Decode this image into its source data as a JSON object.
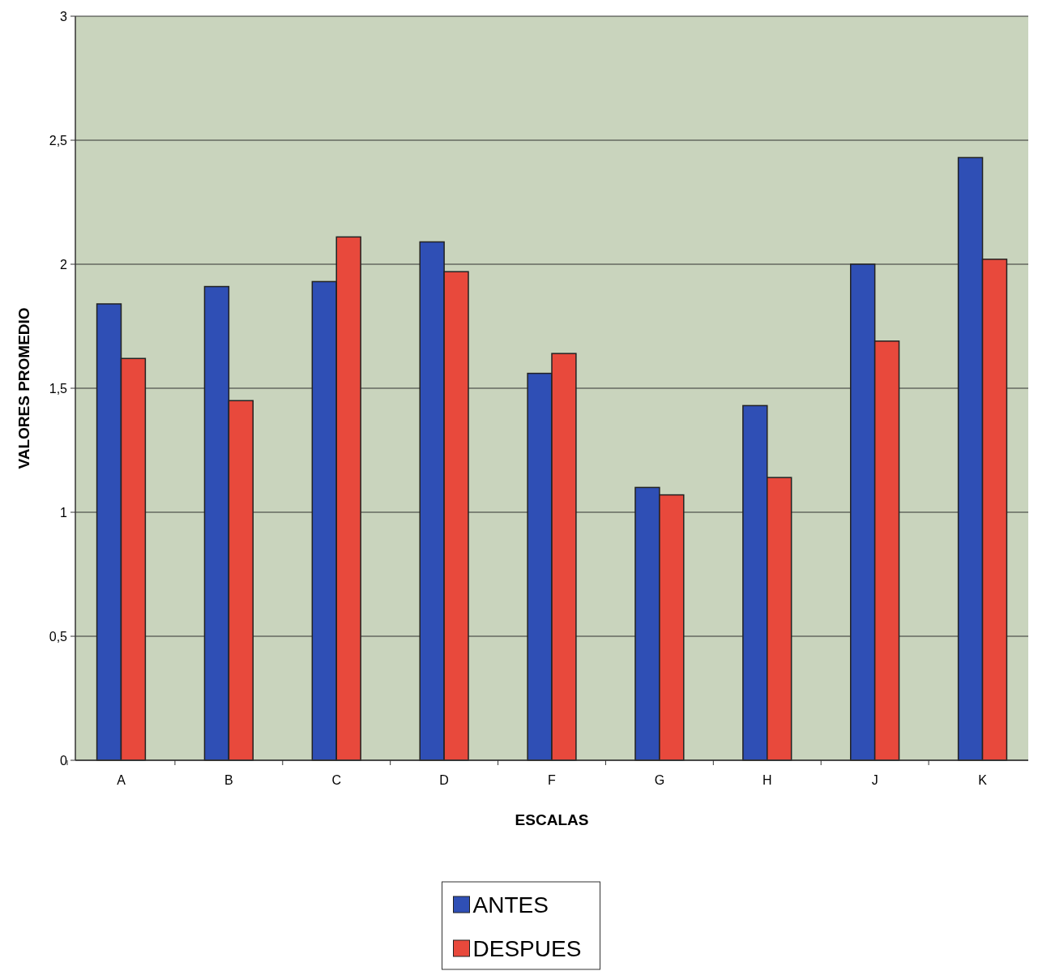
{
  "chart_data": {
    "type": "bar",
    "xlabel": "ESCALAS",
    "ylabel": "VALORES PROMEDIO",
    "categories": [
      "A",
      "B",
      "C",
      "D",
      "F",
      "G",
      "H",
      "J",
      "K"
    ],
    "series": [
      {
        "name": "ANTES",
        "color": "#2f4fb5",
        "values": [
          1.84,
          1.91,
          1.93,
          2.09,
          1.56,
          1.1,
          1.43,
          2.0,
          2.43
        ]
      },
      {
        "name": "DESPUES",
        "color": "#e8493c",
        "values": [
          1.62,
          1.45,
          2.11,
          1.97,
          1.64,
          1.07,
          1.14,
          1.69,
          2.02
        ]
      }
    ],
    "ylim": [
      0,
      3
    ],
    "yticks": [
      0,
      {
        "value": 0.5,
        "label": "0,5"
      },
      1,
      {
        "value": 1.5,
        "label": "1,5"
      },
      2,
      {
        "value": 2.5,
        "label": "2,5"
      },
      3
    ],
    "grid": "y",
    "legend": "bottom"
  }
}
